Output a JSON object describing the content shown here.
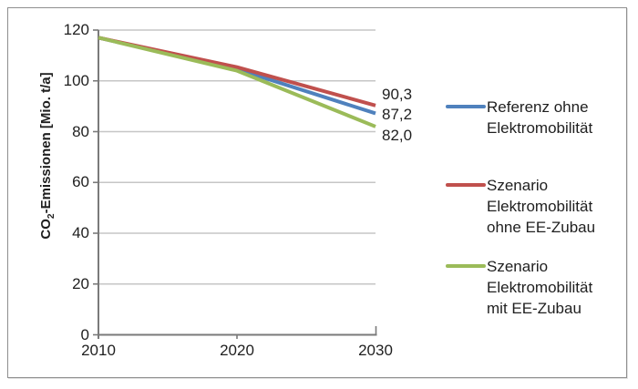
{
  "chart_data": {
    "type": "line",
    "title": "",
    "xlabel": "",
    "ylabel": "CO₂-Emissionen [Mio. t/a]",
    "ylabel_parts": {
      "prefix": "CO",
      "subscript": "2",
      "suffix": "-Emissionen [Mio. t/a]"
    },
    "x": [
      2010,
      2020,
      2030
    ],
    "x_tick_labels": [
      "2010",
      "2020",
      "2030"
    ],
    "y_ticks": [
      0,
      20,
      40,
      60,
      80,
      100,
      120
    ],
    "ylim": [
      0,
      120
    ],
    "xlim": [
      2010,
      2030
    ],
    "grid": true,
    "legend_position": "right",
    "series": [
      {
        "name": "Referenz ohne Elektromobilität",
        "slug": "referenz-ohne-elektromobilitaet",
        "legend_lines": [
          "Referenz ohne",
          "Elektromobilität"
        ],
        "color": "#4F81BD",
        "values": [
          117.0,
          104.6,
          87.2
        ],
        "end_label": "87,2"
      },
      {
        "name": "Szenario Elektromobilität ohne EE-Zubau",
        "slug": "szenario-elektromobilitaet-ohne-ee-zubau",
        "legend_lines": [
          "Szenario",
          "Elektromobilität",
          "ohne EE-Zubau"
        ],
        "color": "#C0504D",
        "values": [
          117.0,
          105.4,
          90.3
        ],
        "end_label": "90,3"
      },
      {
        "name": "Szenario Elektromobilität mit EE-Zubau",
        "slug": "szenario-elektromobilitaet-mit-ee-zubau",
        "legend_lines": [
          "Szenario",
          "Elektromobilität",
          "mit EE-Zubau"
        ],
        "color": "#9BBB59",
        "values": [
          117.0,
          104.0,
          82.0
        ],
        "end_label": "82,0"
      }
    ]
  },
  "colors": {
    "grid": "#C6C6C6",
    "axis": "#7A7A7A",
    "text": "#1F1F1F",
    "frame_border": "#8F8F8F",
    "background": "#FFFFFF"
  }
}
